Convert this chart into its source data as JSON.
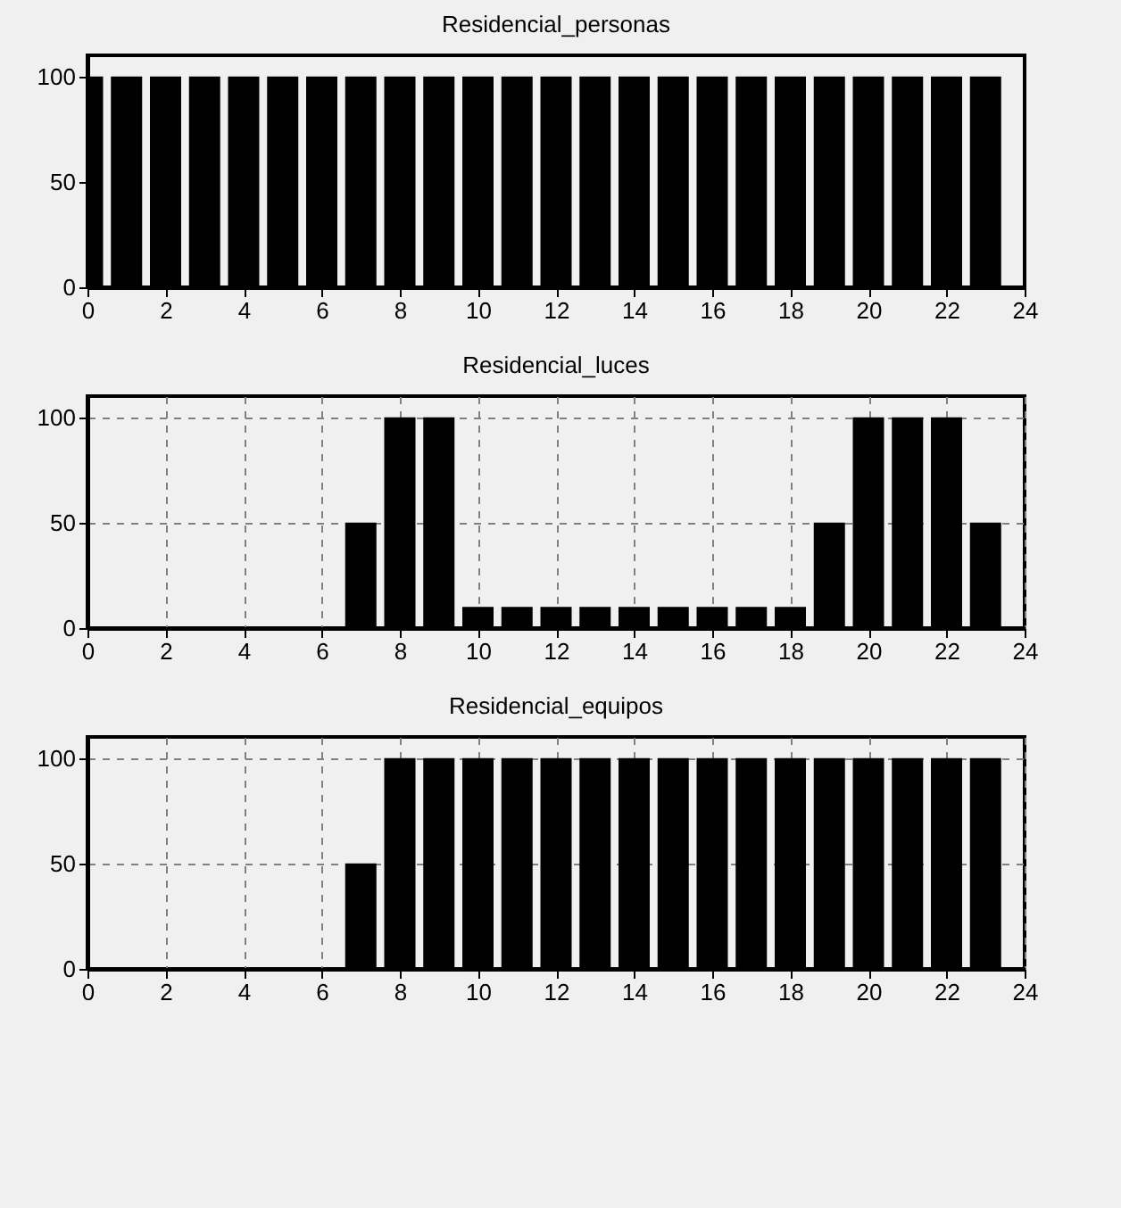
{
  "chart_data": [
    {
      "type": "bar",
      "title": "Residencial_personas",
      "x": [
        0,
        1,
        2,
        3,
        4,
        5,
        6,
        7,
        8,
        9,
        10,
        11,
        12,
        13,
        14,
        15,
        16,
        17,
        18,
        19,
        20,
        21,
        22,
        23
      ],
      "values": [
        100,
        100,
        100,
        100,
        100,
        100,
        100,
        100,
        100,
        100,
        100,
        100,
        100,
        100,
        100,
        100,
        100,
        100,
        100,
        100,
        100,
        100,
        100,
        100
      ],
      "color": "#000000",
      "xlim": [
        0,
        24
      ],
      "xticks": [
        0,
        2,
        4,
        6,
        8,
        10,
        12,
        14,
        16,
        18,
        20,
        22,
        24
      ],
      "ylim": [
        0,
        110
      ],
      "yticks": [
        0,
        50,
        100
      ],
      "grid": false
    },
    {
      "type": "bar",
      "title": "Residencial_luces",
      "x": [
        0,
        1,
        2,
        3,
        4,
        5,
        6,
        7,
        8,
        9,
        10,
        11,
        12,
        13,
        14,
        15,
        16,
        17,
        18,
        19,
        20,
        21,
        22,
        23
      ],
      "values": [
        0,
        0,
        0,
        0,
        0,
        0,
        0,
        50,
        100,
        100,
        10,
        10,
        10,
        10,
        10,
        10,
        10,
        10,
        10,
        50,
        100,
        100,
        100,
        50
      ],
      "color": "#000000",
      "xlim": [
        0,
        24
      ],
      "xticks": [
        0,
        2,
        4,
        6,
        8,
        10,
        12,
        14,
        16,
        18,
        20,
        22,
        24
      ],
      "ylim": [
        0,
        110
      ],
      "yticks": [
        0,
        50,
        100
      ],
      "grid": true
    },
    {
      "type": "bar",
      "title": "Residencial_equipos",
      "x": [
        0,
        1,
        2,
        3,
        4,
        5,
        6,
        7,
        8,
        9,
        10,
        11,
        12,
        13,
        14,
        15,
        16,
        17,
        18,
        19,
        20,
        21,
        22,
        23
      ],
      "values": [
        0,
        0,
        0,
        0,
        0,
        0,
        0,
        50,
        100,
        100,
        100,
        100,
        100,
        100,
        100,
        100,
        100,
        100,
        100,
        100,
        100,
        100,
        100,
        100
      ],
      "color": "#000000",
      "xlim": [
        0,
        24
      ],
      "xticks": [
        0,
        2,
        4,
        6,
        8,
        10,
        12,
        14,
        16,
        18,
        20,
        22,
        24
      ],
      "ylim": [
        0,
        110
      ],
      "yticks": [
        0,
        50,
        100
      ],
      "grid": true
    }
  ]
}
